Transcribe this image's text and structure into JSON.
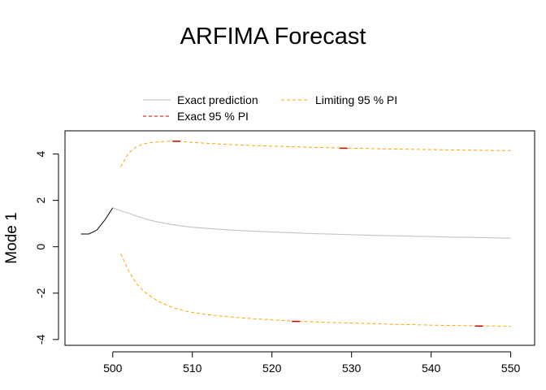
{
  "chart_data": {
    "type": "line",
    "title": "ARFIMA Forecast",
    "xlabel": "",
    "ylabel": "Mode 1",
    "xlim": [
      494,
      553
    ],
    "ylim": [
      -4.25,
      5.0
    ],
    "x_ticks": [
      500,
      510,
      520,
      530,
      540,
      550
    ],
    "y_ticks": [
      -4,
      -2,
      0,
      2,
      4
    ],
    "grid": false,
    "legend_position": "top",
    "legend": [
      {
        "label": "Exact prediction",
        "color": "#BEBEBE",
        "dash": "solid"
      },
      {
        "label": "Exact 95 % PI",
        "color": "#CC0000",
        "dash": "dashed"
      },
      {
        "label": "Limiting 95 % PI",
        "color": "#FFA500",
        "dash": "dashed"
      }
    ],
    "colors": {
      "history": "#000000",
      "prediction": "#BEBEBE",
      "exact_pi": "#CC0000",
      "limiting_pi": "#FFA500"
    },
    "series": [
      {
        "role": "history",
        "x": [
          496,
          497,
          498,
          499,
          500
        ],
        "values": [
          0.55,
          0.55,
          0.72,
          1.15,
          1.68
        ]
      },
      {
        "role": "prediction",
        "x": [
          500,
          501,
          502,
          503,
          504,
          505,
          506,
          507,
          508,
          509,
          510,
          512,
          514,
          516,
          518,
          520,
          522,
          524,
          526,
          528,
          530,
          532,
          534,
          536,
          538,
          540,
          542,
          544,
          546,
          548,
          550
        ],
        "values": [
          1.68,
          1.55,
          1.45,
          1.32,
          1.21,
          1.12,
          1.05,
          0.98,
          0.93,
          0.88,
          0.84,
          0.79,
          0.74,
          0.7,
          0.67,
          0.64,
          0.61,
          0.58,
          0.56,
          0.54,
          0.52,
          0.5,
          0.48,
          0.47,
          0.45,
          0.44,
          0.42,
          0.41,
          0.4,
          0.38,
          0.37
        ]
      },
      {
        "role": "limiting_upper",
        "x": [
          501,
          502,
          503,
          504,
          505,
          506,
          507,
          508,
          509,
          510,
          512,
          514,
          516,
          518,
          520,
          522,
          524,
          526,
          528,
          530,
          532,
          534,
          536,
          538,
          540,
          542,
          544,
          546,
          548,
          550
        ],
        "values": [
          3.45,
          4.05,
          4.32,
          4.45,
          4.5,
          4.53,
          4.55,
          4.55,
          4.53,
          4.5,
          4.46,
          4.42,
          4.39,
          4.36,
          4.34,
          4.32,
          4.3,
          4.28,
          4.27,
          4.25,
          4.24,
          4.22,
          4.21,
          4.2,
          4.19,
          4.18,
          4.17,
          4.16,
          4.15,
          4.15
        ]
      },
      {
        "role": "limiting_lower",
        "x": [
          501,
          502,
          503,
          504,
          505,
          506,
          507,
          508,
          509,
          510,
          512,
          514,
          516,
          518,
          520,
          522,
          524,
          526,
          528,
          530,
          532,
          534,
          536,
          538,
          540,
          542,
          544,
          546,
          548,
          550
        ],
        "values": [
          -0.3,
          -1.05,
          -1.6,
          -1.95,
          -2.2,
          -2.4,
          -2.55,
          -2.67,
          -2.76,
          -2.83,
          -2.93,
          -3.0,
          -3.06,
          -3.11,
          -3.15,
          -3.19,
          -3.22,
          -3.25,
          -3.27,
          -3.29,
          -3.31,
          -3.33,
          -3.35,
          -3.36,
          -3.38,
          -3.39,
          -3.4,
          -3.41,
          -3.42,
          -3.43
        ]
      },
      {
        "role": "exact_upper",
        "x": [
          507.5,
          508.5,
          528.5,
          529.5
        ],
        "values": [
          4.55,
          4.55,
          4.25,
          4.25
        ]
      },
      {
        "role": "exact_lower",
        "x": [
          522.5,
          523.5,
          545.5,
          546.5
        ],
        "values": [
          -3.22,
          -3.22,
          -3.42,
          -3.42
        ]
      }
    ]
  }
}
